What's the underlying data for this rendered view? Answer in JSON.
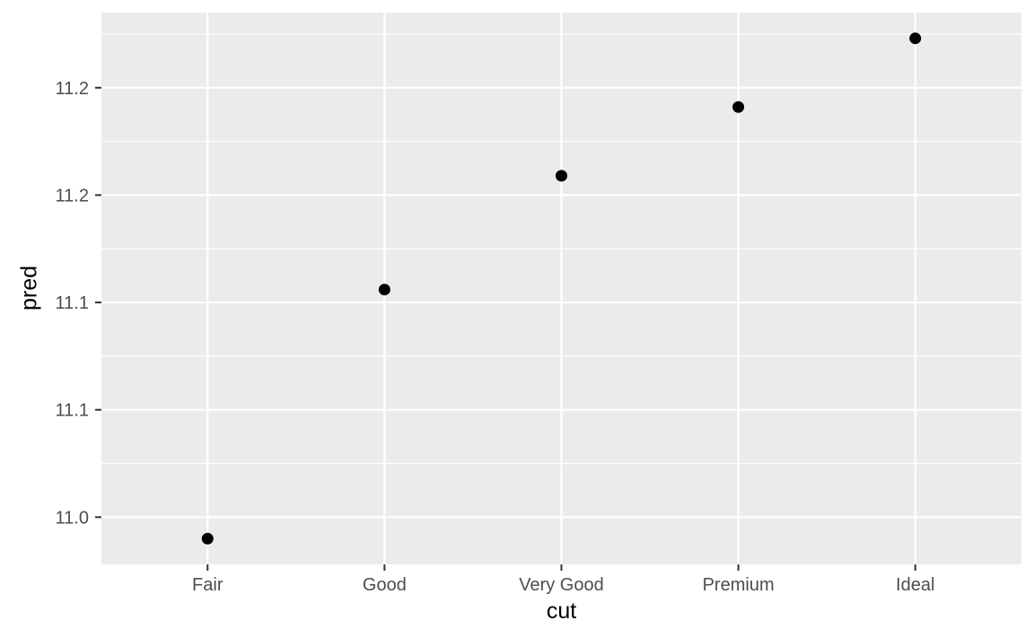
{
  "chart_data": {
    "type": "scatter",
    "title": "",
    "xlabel": "cut",
    "ylabel": "pred",
    "categories": [
      "Fair",
      "Good",
      "Very Good",
      "Premium",
      "Ideal"
    ],
    "series": [
      {
        "name": "pred",
        "values": [
          11.04,
          11.156,
          11.209,
          11.241,
          11.273
        ]
      }
    ],
    "y_ticks": [
      {
        "value": 11.05,
        "label": "11.0"
      },
      {
        "value": 11.1,
        "label": "11.1"
      },
      {
        "value": 11.15,
        "label": "11.1"
      },
      {
        "value": 11.2,
        "label": "11.2"
      },
      {
        "value": 11.25,
        "label": "11.2"
      }
    ],
    "y_minor_ticks": [
      11.075,
      11.125,
      11.175,
      11.225,
      11.275
    ],
    "ylim": [
      11.028,
      11.285
    ],
    "grid": true,
    "legend": "none",
    "style": {
      "background": "#FFFFFF",
      "panel_bg": "#EBEBEB",
      "grid_major_color": "#FFFFFF",
      "grid_minor_color": "#FFFFFF",
      "point_color": "#000000",
      "tick_mark_color": "#333333",
      "tick_label_color": "#4D4D4D",
      "axis_title_color": "#000000"
    }
  }
}
